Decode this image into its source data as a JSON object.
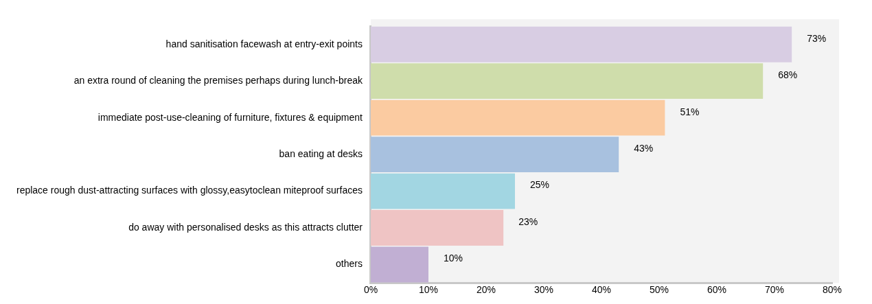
{
  "chart_data": {
    "type": "bar",
    "orientation": "horizontal",
    "categories": [
      "hand sanitisation facewash at entry-exit points",
      "an extra round of cleaning the premises perhaps during lunch-break",
      "immediate post-use-cleaning of furniture, fixtures & equipment",
      "ban eating at desks",
      "replace rough dust-attracting surfaces with glossy,easytoclean miteproof surfaces",
      "do away with personalised desks as this attracts clutter",
      "others"
    ],
    "values": [
      73,
      68,
      51,
      43,
      25,
      23,
      10
    ],
    "colors": [
      "#d8cde3",
      "#cfddab",
      "#fbcba1",
      "#a8c1df",
      "#a2d6e2",
      "#efc4c4",
      "#c1afd3"
    ],
    "value_labels": [
      "73%",
      "68%",
      "51%",
      "43%",
      "25%",
      "23%",
      "10%"
    ],
    "xlim": [
      0,
      80
    ],
    "xticks": [
      {
        "value": 0,
        "label": "0%"
      },
      {
        "value": 10,
        "label": "10%"
      },
      {
        "value": 20,
        "label": "20%"
      },
      {
        "value": 30,
        "label": "30%"
      },
      {
        "value": 40,
        "label": "40%"
      },
      {
        "value": 50,
        "label": "50%"
      },
      {
        "value": 60,
        "label": "60%"
      },
      {
        "value": 70,
        "label": "70%"
      },
      {
        "value": 80,
        "label": "80%"
      }
    ],
    "grid": false
  }
}
